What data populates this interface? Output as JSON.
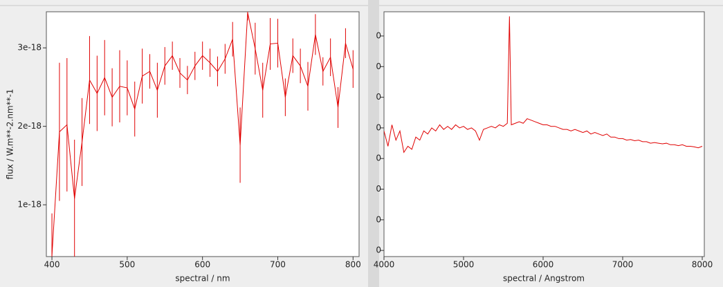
{
  "chart_data": [
    {
      "type": "line",
      "x_label": "spectral / nm",
      "y_label": "flux / W.m**-2.nm**-1",
      "color": "#e00000",
      "x": [
        400,
        410,
        420,
        430,
        440,
        450,
        460,
        470,
        480,
        490,
        500,
        510,
        520,
        530,
        540,
        550,
        560,
        570,
        580,
        590,
        600,
        610,
        620,
        630,
        640,
        650,
        660,
        670,
        680,
        690,
        700,
        710,
        720,
        730,
        740,
        750,
        760,
        770,
        780,
        790,
        800
      ],
      "values": [
        3.5e-19,
        1.93e-18,
        2.02e-18,
        1.08e-18,
        1.8e-18,
        2.59e-18,
        2.42e-18,
        2.62e-18,
        2.37e-18,
        2.51e-18,
        2.49e-18,
        2.22e-18,
        2.64e-18,
        2.7e-18,
        2.46e-18,
        2.77e-18,
        2.9e-18,
        2.68e-18,
        2.59e-18,
        2.77e-18,
        2.9e-18,
        2.81e-18,
        2.7e-18,
        2.86e-18,
        3.11e-18,
        1.76e-18,
        3.45e-18,
        2.99e-18,
        2.46e-18,
        3.05e-18,
        3.06e-18,
        2.37e-18,
        2.9e-18,
        2.77e-18,
        2.51e-18,
        3.17e-18,
        2.7e-18,
        2.88e-18,
        2.24e-18,
        3.06e-18,
        2.73e-18
      ],
      "errors": [
        5.4e-19,
        8.8e-19,
        8.5e-19,
        7.5e-19,
        5.6e-19,
        5.6e-19,
        4.8e-19,
        4.8e-19,
        3.7e-19,
        4.6e-19,
        3.5e-19,
        3.5e-19,
        3.5e-19,
        2.2e-19,
        3.5e-19,
        2.4e-19,
        1.8e-19,
        1.9e-19,
        1.8e-19,
        1.8e-19,
        1.8e-19,
        1.8e-19,
        1.9e-19,
        1.9e-19,
        2.2e-19,
        4.8e-19,
        1e-19,
        3.3e-19,
        3.5e-19,
        3.3e-19,
        3.1e-19,
        2.4e-19,
        2.2e-19,
        2.2e-19,
        3.1e-19,
        2.6e-19,
        1.8e-19,
        2.4e-19,
        2.6e-19,
        1.9e-19,
        2.4e-19
      ],
      "xlim": [
        392.6,
        808
      ],
      "xticks": [
        400,
        500,
        600,
        700,
        800
      ],
      "ylim": [
        3.4e-19,
        3.46e-18
      ],
      "yticks": [
        1e-18,
        2e-18,
        3e-18
      ]
    },
    {
      "type": "line",
      "x_label": "spectral / Angstrom",
      "color": "#e00000",
      "x": [
        4000,
        4050,
        4100,
        4150,
        4200,
        4250,
        4300,
        4350,
        4400,
        4450,
        4500,
        4550,
        4600,
        4650,
        4700,
        4750,
        4800,
        4850,
        4900,
        4950,
        5000,
        5050,
        5100,
        5150,
        5200,
        5250,
        5300,
        5350,
        5400,
        5450,
        5500,
        5550,
        5577,
        5600,
        5650,
        5700,
        5750,
        5800,
        5850,
        5900,
        5950,
        6000,
        6050,
        6100,
        6150,
        6200,
        6250,
        6300,
        6350,
        6400,
        6450,
        6500,
        6550,
        6600,
        6650,
        6700,
        6750,
        6800,
        6850,
        6900,
        6950,
        7000,
        7050,
        7100,
        7150,
        7200,
        7250,
        7300,
        7350,
        7400,
        7450,
        7500,
        7550,
        7600,
        7650,
        7700,
        7750,
        7800,
        7850,
        7900,
        7950,
        8000
      ],
      "values": [
        4.9,
        4.4,
        5.1,
        4.6,
        4.9,
        4.2,
        4.4,
        4.3,
        4.7,
        4.6,
        4.9,
        4.8,
        5.0,
        4.9,
        5.1,
        4.95,
        5.05,
        4.95,
        5.1,
        5.0,
        5.05,
        4.95,
        5.0,
        4.9,
        4.6,
        4.95,
        5.0,
        5.05,
        5.0,
        5.1,
        5.05,
        5.15,
        8.64,
        5.1,
        5.15,
        5.2,
        5.15,
        5.3,
        5.25,
        5.2,
        5.15,
        5.1,
        5.1,
        5.05,
        5.05,
        5.0,
        4.95,
        4.95,
        4.9,
        4.95,
        4.9,
        4.85,
        4.9,
        4.8,
        4.85,
        4.8,
        4.75,
        4.8,
        4.7,
        4.7,
        4.65,
        4.65,
        4.6,
        4.62,
        4.58,
        4.6,
        4.55,
        4.55,
        4.5,
        4.52,
        4.5,
        4.48,
        4.5,
        4.45,
        4.45,
        4.42,
        4.45,
        4.4,
        4.4,
        4.38,
        4.35,
        4.4
      ],
      "xlim": [
        4000,
        8026
      ],
      "xticks": [
        4000,
        5000,
        6000,
        7000,
        8000
      ],
      "ylim": [
        0.8,
        8.79
      ],
      "yticks": [
        {
          "value": 1,
          "label": "0"
        },
        {
          "value": 2,
          "label": "0"
        },
        {
          "value": 3,
          "label": "0"
        },
        {
          "value": 4,
          "label": "0"
        },
        {
          "value": 5,
          "label": "0"
        },
        {
          "value": 6,
          "label": "0"
        },
        {
          "value": 7,
          "label": "0"
        },
        {
          "value": 8,
          "label": "0"
        }
      ]
    }
  ]
}
